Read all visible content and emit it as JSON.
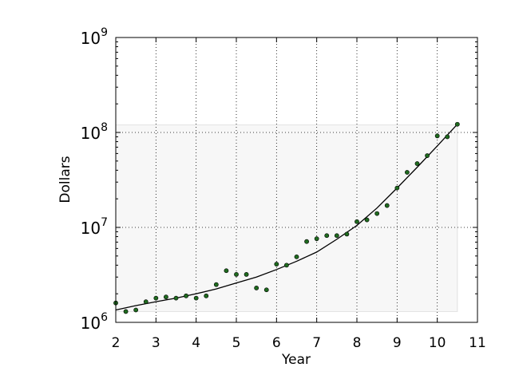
{
  "chart_data": {
    "type": "scatter",
    "title": "",
    "xlabel": "Year",
    "ylabel": "Dollars",
    "xlim": [
      2,
      11
    ],
    "ylim": [
      1000000,
      1000000000
    ],
    "yscale": "log",
    "grid": true,
    "x_ticks": [
      2,
      3,
      4,
      5,
      6,
      7,
      8,
      9,
      10,
      11
    ],
    "y_ticks": [
      1000000,
      10000000,
      100000000,
      1000000000
    ],
    "y_tick_labels": [
      {
        "base": "10",
        "exp": "6"
      },
      {
        "base": "10",
        "exp": "7"
      },
      {
        "base": "10",
        "exp": "8"
      },
      {
        "base": "10",
        "exp": "9"
      }
    ],
    "point_color": "#1f6b1f",
    "shaded_region": {
      "x": [
        2,
        10.5
      ],
      "y": [
        1300000,
        120000000
      ],
      "color": "#f7f7f7"
    },
    "series": [
      {
        "type": "scatter",
        "x": [
          2.0,
          2.25,
          2.5,
          2.75,
          3.0,
          3.25,
          3.5,
          3.75,
          4.0,
          4.25,
          4.5,
          4.75,
          5.0,
          5.25,
          5.5,
          5.75,
          6.0,
          6.25,
          6.5,
          6.75,
          7.0,
          7.25,
          7.5,
          7.75,
          8.0,
          8.25,
          8.5,
          8.75,
          9.0,
          9.25,
          9.5,
          9.75,
          10.0,
          10.25,
          10.5
        ],
        "y": [
          1600000,
          1300000,
          1350000,
          1650000,
          1800000,
          1850000,
          1800000,
          1900000,
          1800000,
          1900000,
          2500000,
          3500000,
          3200000,
          3200000,
          2300000,
          2200000,
          4100000,
          4000000,
          4900000,
          7100000,
          7600000,
          8200000,
          8200000,
          8500000,
          11500000,
          12000000,
          14000000,
          17000000,
          26000000,
          38000000,
          47000000,
          57000000,
          92000000,
          90000000,
          122000000
        ]
      },
      {
        "type": "line",
        "x": [
          2.0,
          2.5,
          3.0,
          3.5,
          4.0,
          4.5,
          5.0,
          5.5,
          6.0,
          6.5,
          7.0,
          7.5,
          8.0,
          8.5,
          9.0,
          9.5,
          10.0,
          10.5
        ],
        "y": [
          1350000,
          1500000,
          1650000,
          1800000,
          2000000,
          2250000,
          2600000,
          3000000,
          3600000,
          4400000,
          5500000,
          7500000,
          10500000,
          16000000,
          26000000,
          43000000,
          72000000,
          122000000
        ]
      }
    ]
  }
}
